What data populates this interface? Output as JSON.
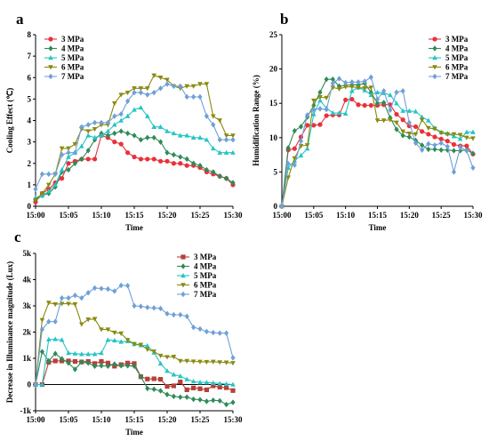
{
  "chart_data": [
    {
      "panel_label": "a",
      "type": "line",
      "xlabel": "Time",
      "ylabel": "Cooling Effect (℃)",
      "x_ticks": [
        "15:00",
        "15:05",
        "15:10",
        "15:15",
        "15:20",
        "15:25",
        "15:30"
      ],
      "xlim": [
        0,
        30
      ],
      "ylim": [
        0,
        8
      ],
      "y_ticks": [
        "0",
        "1",
        "2",
        "3",
        "4",
        "5",
        "6",
        "7",
        "8"
      ],
      "legend": "top-left",
      "x": [
        0,
        1,
        2,
        3,
        4,
        5,
        6,
        7,
        8,
        9,
        10,
        11,
        12,
        13,
        14,
        15,
        16,
        17,
        18,
        19,
        20,
        21,
        22,
        23,
        24,
        25,
        26,
        27,
        28,
        29,
        30
      ],
      "series": [
        {
          "name": "3 MPa",
          "color": "#e8313a",
          "marker": "circle",
          "values": [
            0.2,
            0.6,
            0.8,
            1.1,
            1.3,
            2.0,
            2.1,
            2.2,
            2.2,
            2.2,
            3.3,
            3.2,
            3.0,
            2.9,
            2.5,
            2.3,
            2.2,
            2.2,
            2.2,
            2.1,
            2.1,
            2.0,
            2.0,
            1.9,
            1.9,
            1.8,
            1.6,
            1.5,
            1.4,
            1.3,
            1.0
          ]
        },
        {
          "name": "4 MPa",
          "color": "#2e8b57",
          "marker": "diamond",
          "values": [
            0.3,
            0.5,
            0.6,
            0.9,
            1.6,
            1.7,
            2.0,
            2.2,
            2.6,
            3.1,
            3.4,
            3.3,
            3.4,
            3.5,
            3.4,
            3.3,
            3.1,
            3.2,
            3.2,
            3.0,
            2.5,
            2.4,
            2.3,
            2.2,
            2.0,
            1.9,
            1.7,
            1.6,
            1.4,
            1.3,
            1.1
          ]
        },
        {
          "name": "5 MPa",
          "color": "#27c4c4",
          "marker": "triangle-up",
          "values": [
            0.4,
            0.5,
            0.7,
            1.0,
            1.7,
            2.3,
            2.5,
            2.8,
            3.3,
            3.2,
            3.3,
            3.5,
            3.8,
            4.0,
            4.2,
            4.5,
            4.6,
            4.2,
            3.7,
            3.7,
            3.5,
            3.4,
            3.3,
            3.3,
            3.2,
            3.2,
            3.1,
            2.7,
            2.5,
            2.5,
            2.5
          ]
        },
        {
          "name": "6 MPa",
          "color": "#8a8a10",
          "marker": "triangle-down",
          "values": [
            0.3,
            0.6,
            1.0,
            1.5,
            2.7,
            2.7,
            2.9,
            3.6,
            3.5,
            3.6,
            3.8,
            3.8,
            4.8,
            5.2,
            5.3,
            5.5,
            5.5,
            5.5,
            6.1,
            6.0,
            5.9,
            5.6,
            5.5,
            5.6,
            5.6,
            5.7,
            5.7,
            4.2,
            4.0,
            3.3,
            3.3
          ]
        },
        {
          "name": "7 MPa",
          "color": "#6fa0d8",
          "marker": "diamond",
          "values": [
            0.8,
            1.5,
            1.5,
            1.5,
            2.4,
            2.5,
            2.5,
            3.7,
            3.8,
            3.9,
            3.9,
            3.9,
            4.2,
            4.3,
            4.9,
            5.3,
            5.3,
            5.2,
            5.3,
            5.5,
            5.7,
            5.6,
            5.6,
            5.1,
            5.1,
            5.1,
            4.2,
            3.8,
            3.1,
            3.1,
            3.1
          ]
        }
      ]
    },
    {
      "panel_label": "b",
      "type": "line",
      "xlabel": "Time",
      "ylabel": "Humidification Range (%)",
      "x_ticks": [
        "15:00",
        "15:05",
        "15:10",
        "15:15",
        "15:20",
        "15:25",
        "15:30"
      ],
      "xlim": [
        0,
        30
      ],
      "ylim": [
        0,
        25
      ],
      "y_ticks": [
        "0",
        "5",
        "10",
        "15",
        "20",
        "25"
      ],
      "legend": "top-right",
      "x": [
        0,
        1,
        2,
        3,
        4,
        5,
        6,
        7,
        8,
        9,
        10,
        11,
        12,
        13,
        14,
        15,
        16,
        17,
        18,
        19,
        20,
        21,
        22,
        23,
        24,
        25,
        26,
        27,
        28,
        29,
        30
      ],
      "series": [
        {
          "name": "3 MPa",
          "color": "#e8313a",
          "marker": "circle",
          "values": [
            0,
            8.2,
            8.4,
            10.1,
            11.8,
            11.8,
            11.9,
            13.2,
            13.3,
            13.3,
            15.5,
            15.6,
            14.8,
            14.7,
            14.7,
            14.7,
            14.8,
            14.8,
            13.4,
            12.6,
            11.7,
            11.6,
            10.9,
            10.5,
            10.1,
            9.8,
            9.5,
            9.0,
            8.8,
            8.8,
            7.6
          ]
        },
        {
          "name": "4 MPa",
          "color": "#2e8b57",
          "marker": "diamond",
          "values": [
            0,
            8.5,
            11.0,
            11.6,
            13.0,
            14.7,
            16.6,
            18.5,
            18.5,
            17.5,
            17.6,
            17.7,
            17.7,
            17.9,
            16.6,
            15.0,
            15.1,
            12.9,
            11.2,
            10.3,
            10.1,
            9.6,
            8.9,
            8.3,
            8.3,
            8.2,
            8.2,
            8.1,
            8.1,
            8.2,
            7.7
          ]
        },
        {
          "name": "5 MPa",
          "color": "#27c4c4",
          "marker": "triangle-up",
          "values": [
            0,
            5.6,
            6.6,
            7.4,
            8.4,
            13.4,
            15.4,
            14.3,
            13.6,
            13.6,
            13.5,
            16.8,
            17.3,
            16.9,
            16.2,
            16.6,
            16.5,
            16.2,
            15.0,
            13.9,
            13.9,
            13.8,
            13.0,
            12.5,
            11.4,
            10.8,
            10.6,
            10.2,
            9.8,
            10.8,
            10.8
          ]
        },
        {
          "name": "6 MPa",
          "color": "#8a8a10",
          "marker": "triangle-down",
          "values": [
            0,
            4.2,
            7.0,
            8.8,
            8.9,
            15.4,
            15.9,
            15.8,
            17.3,
            17.1,
            17.4,
            17.4,
            17.3,
            17.2,
            17.3,
            12.5,
            12.5,
            12.6,
            12.2,
            10.9,
            10.6,
            10.5,
            12.6,
            11.4,
            11.3,
            10.7,
            10.5,
            10.5,
            10.4,
            10.0,
            9.9
          ]
        },
        {
          "name": "7 MPa",
          "color": "#6fa0d8",
          "marker": "diamond",
          "values": [
            0,
            6.2,
            6.0,
            9.5,
            13.3,
            14.1,
            14.2,
            14.1,
            17.9,
            18.6,
            18.0,
            18.1,
            18.1,
            18.2,
            18.8,
            15.6,
            16.8,
            14.0,
            16.6,
            16.8,
            12.2,
            9.2,
            8.2,
            9.1,
            8.9,
            9.2,
            8.7,
            5.0,
            8.6,
            8.1,
            5.6
          ]
        }
      ]
    },
    {
      "panel_label": "c",
      "type": "line",
      "xlabel": "Time",
      "ylabel": "Decrease in Illuminance magnitude (Lux)",
      "x_ticks": [
        "15:00",
        "15:05",
        "15:10",
        "15:15",
        "15:20",
        "15:25",
        "15:30"
      ],
      "xlim": [
        0,
        30
      ],
      "ylim": [
        -1000,
        5000
      ],
      "y_ticks": [
        "-1k",
        "0",
        "1k",
        "2k",
        "3k",
        "4k",
        "5k"
      ],
      "legend": "top-right",
      "x": [
        0,
        1,
        2,
        3,
        4,
        5,
        6,
        7,
        8,
        9,
        10,
        11,
        12,
        13,
        14,
        15,
        16,
        17,
        18,
        19,
        20,
        21,
        22,
        23,
        24,
        25,
        26,
        27,
        28,
        29,
        30
      ],
      "series": [
        {
          "name": "3 MPa",
          "color": "#b5403a",
          "marker": "square",
          "values": [
            0,
            0,
            850,
            900,
            900,
            900,
            880,
            860,
            880,
            800,
            880,
            820,
            700,
            760,
            820,
            800,
            300,
            210,
            220,
            200,
            -70,
            -50,
            100,
            -200,
            -130,
            -160,
            -200,
            -50,
            -100,
            -120,
            -230
          ]
        },
        {
          "name": "4 MPa",
          "color": "#2e8b57",
          "marker": "diamond",
          "values": [
            0,
            1250,
            900,
            1180,
            980,
            820,
            580,
            860,
            820,
            700,
            720,
            700,
            780,
            720,
            720,
            700,
            300,
            -150,
            -180,
            -240,
            -380,
            -450,
            -480,
            -480,
            -560,
            -580,
            -640,
            -600,
            -620,
            -760,
            -680
          ]
        },
        {
          "name": "5 MPa",
          "color": "#27c4c4",
          "marker": "triangle-up",
          "values": [
            0,
            0,
            1720,
            1730,
            1700,
            1200,
            1180,
            1160,
            1160,
            1160,
            1200,
            1700,
            1680,
            1630,
            1650,
            1540,
            1500,
            1480,
            1220,
            800,
            520,
            380,
            320,
            200,
            120,
            80,
            80,
            60,
            40,
            20,
            0
          ]
        },
        {
          "name": "6 MPa",
          "color": "#8a8a10",
          "marker": "triangle-down",
          "values": [
            0,
            2460,
            3120,
            3060,
            3080,
            3080,
            3060,
            2300,
            2480,
            2500,
            2100,
            2100,
            1980,
            1950,
            1700,
            1550,
            1520,
            1340,
            1260,
            1100,
            1050,
            1060,
            900,
            900,
            880,
            870,
            860,
            870,
            850,
            840,
            820
          ]
        },
        {
          "name": "7 MPa",
          "color": "#6fa0d8",
          "marker": "diamond",
          "values": [
            0,
            2100,
            2400,
            2400,
            3300,
            3300,
            3400,
            3300,
            3500,
            3680,
            3660,
            3640,
            3560,
            3780,
            3770,
            3000,
            2980,
            2940,
            2920,
            2900,
            2700,
            2660,
            2660,
            2600,
            2180,
            2120,
            2020,
            1980,
            1960,
            1960,
            1020
          ]
        }
      ]
    }
  ]
}
